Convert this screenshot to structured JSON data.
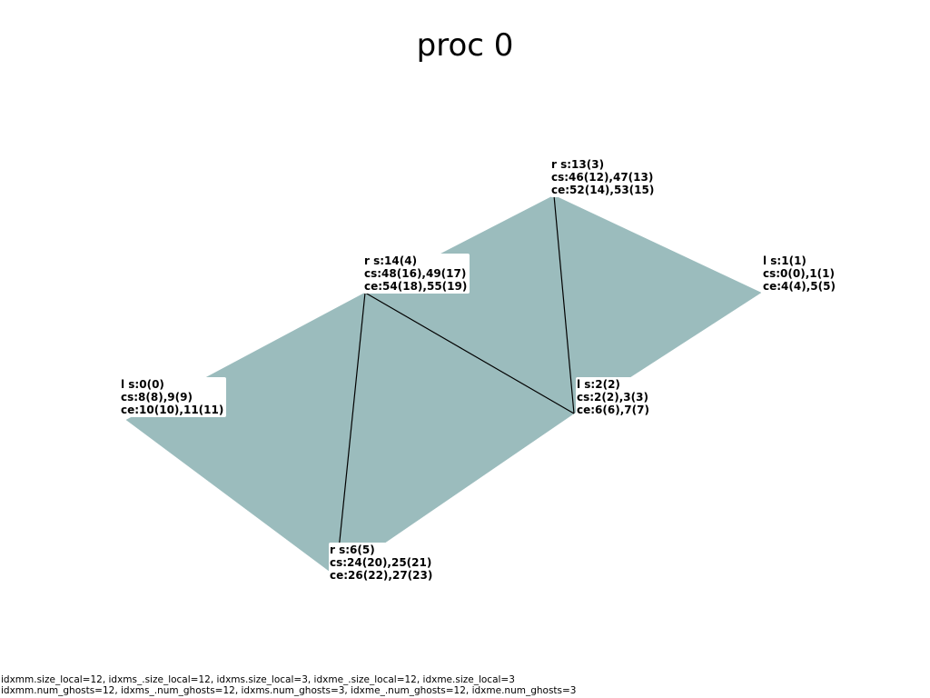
{
  "title": "proc 0",
  "mesh": {
    "face_color": "#9bbcbd",
    "edge_color": "#000000",
    "vertices": [
      {
        "id": "s0",
        "lines": [
          "l s:0(0)",
          "cs:8(8),9(9)",
          "ce:10(10),11(11)"
        ]
      },
      {
        "id": "s14",
        "lines": [
          "r s:14(4)",
          "cs:48(16),49(17)",
          "ce:54(18),55(19)"
        ]
      },
      {
        "id": "s13",
        "lines": [
          "r s:13(3)",
          "cs:46(12),47(13)",
          "ce:52(14),53(15)"
        ]
      },
      {
        "id": "s1",
        "lines": [
          "l s:1(1)",
          "cs:0(0),1(1)",
          "ce:4(4),5(5)"
        ]
      },
      {
        "id": "s2",
        "lines": [
          "l s:2(2)",
          "cs:2(2),3(3)",
          "ce:6(6),7(7)"
        ]
      },
      {
        "id": "s6",
        "lines": [
          "r s:6(5)",
          "cs:24(20),25(21)",
          "ce:26(22),27(23)"
        ]
      }
    ]
  },
  "footer": {
    "line1": "idxmm.size_local=12, idxms_.size_local=12, idxms.size_local=3, idxme_.size_local=12, idxme.size_local=3",
    "line2": "idxmm.num_ghosts=12, idxms_.num_ghosts=12, idxms.num_ghosts=3, idxme_.num_ghosts=12, idxme.num_ghosts=3"
  }
}
